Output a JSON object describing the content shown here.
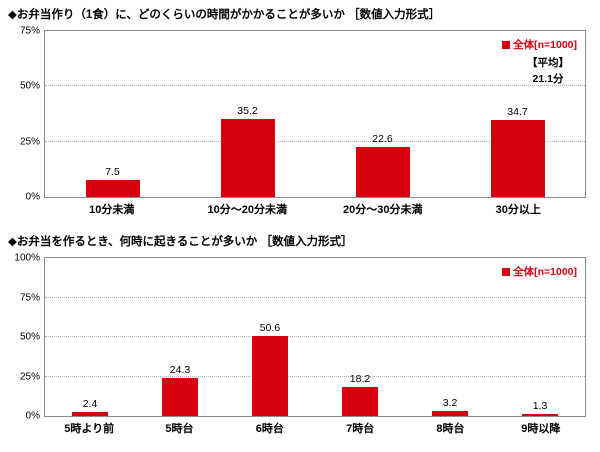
{
  "colors": {
    "bar": "#d7000f",
    "grid": "#b5b5b5",
    "border": "#8c8c8c"
  },
  "chart_data": [
    {
      "type": "bar",
      "title": "◆お弁当作り（1食）に、どのくらいの時間がかかることが多いか ［数値入力形式］",
      "legend": "全体[n=1000]",
      "note": [
        "【平均】",
        "21.1分"
      ],
      "categories": [
        "10分未満",
        "10分〜20分未満",
        "20分〜30分未満",
        "30分以上"
      ],
      "values": [
        7.5,
        35.2,
        22.6,
        34.7
      ],
      "ylim": [
        0,
        75
      ],
      "yticks": [
        0,
        25,
        50,
        75
      ],
      "ylabel": "%",
      "grid": true,
      "legend_position": "top-right"
    },
    {
      "type": "bar",
      "title": "◆お弁当を作るとき、何時に起きることが多いか ［数値入力形式］",
      "legend": "全体[n=1000]",
      "categories": [
        "5時より前",
        "5時台",
        "6時台",
        "7時台",
        "8時台",
        "9時以降"
      ],
      "values": [
        2.4,
        24.3,
        50.6,
        18.2,
        3.2,
        1.3
      ],
      "ylim": [
        0,
        100
      ],
      "yticks": [
        0,
        25,
        50,
        75,
        100
      ],
      "ylabel": "%",
      "grid": true,
      "legend_position": "top-right"
    }
  ]
}
